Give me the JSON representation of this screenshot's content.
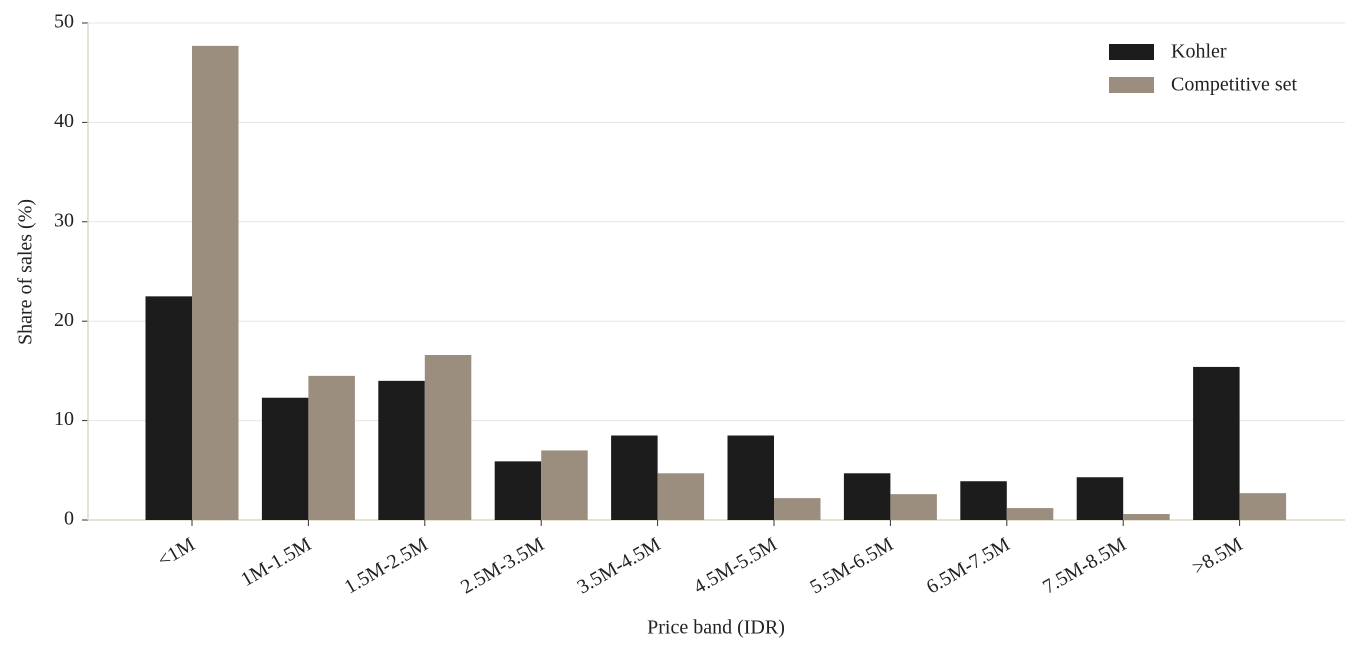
{
  "chart_data": {
    "type": "bar",
    "x_label": "Price band (IDR)",
    "y_label": "Share of sales (%)",
    "categories": [
      "<1M",
      "1M-1.5M",
      "1.5M-2.5M",
      "2.5M-3.5M",
      "3.5M-4.5M",
      "4.5M-5.5M",
      "5.5M-6.5M",
      "6.5M-7.5M",
      "7.5M-8.5M",
      ">8.5M"
    ],
    "series": [
      {
        "name": "Kohler",
        "color": "#1c1c1c",
        "values": [
          22.5,
          12.3,
          14.0,
          5.9,
          8.5,
          8.5,
          4.7,
          3.9,
          4.3,
          15.4
        ]
      },
      {
        "name": "Competitive set",
        "color": "#9b8e7e",
        "values": [
          47.7,
          14.5,
          16.6,
          7.0,
          4.7,
          2.2,
          2.6,
          1.2,
          0.6,
          2.7
        ]
      }
    ],
    "ylim": [
      0,
      50
    ],
    "yticks": [
      0,
      10,
      20,
      30,
      40,
      50
    ],
    "grid": true,
    "legend": "upper right"
  }
}
